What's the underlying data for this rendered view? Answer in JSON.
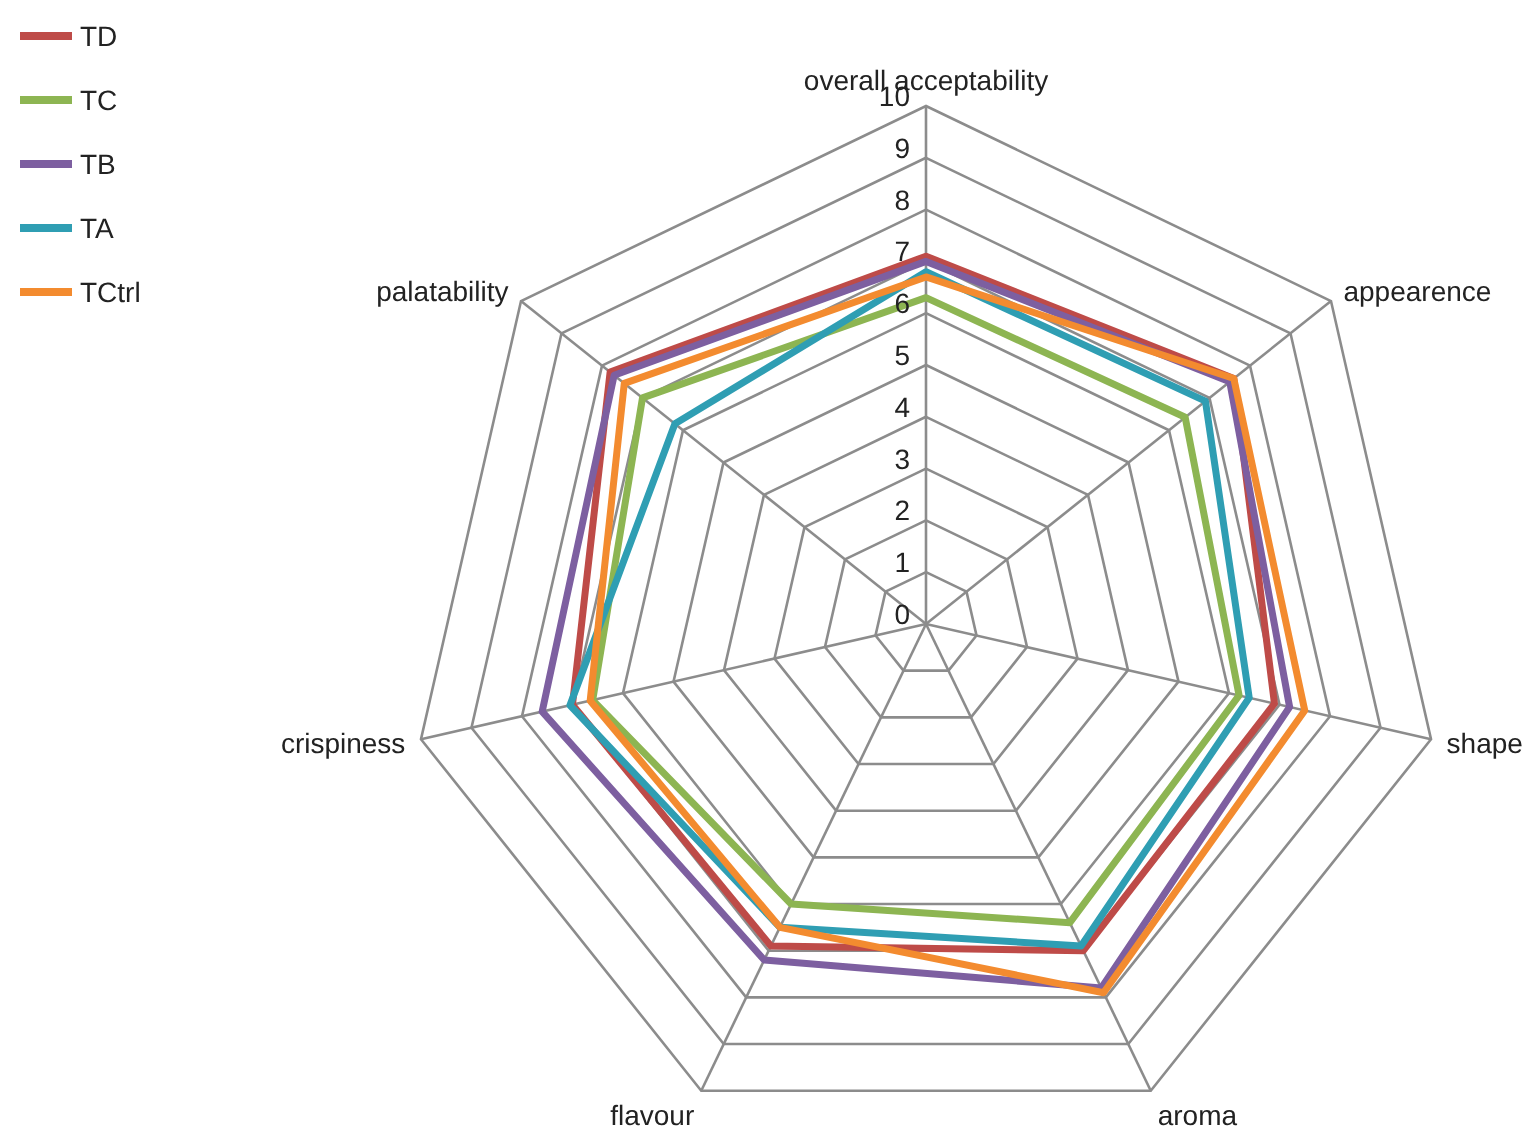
{
  "chart_data": {
    "type": "radar",
    "categories": [
      "overall acceptability",
      "appearence",
      "shape",
      "aroma",
      "flavour",
      "crispiness",
      "palatability"
    ],
    "series": [
      {
        "name": "TD",
        "color": "#be4b48",
        "values": [
          7.1,
          7.6,
          6.9,
          7.0,
          6.9,
          7.0,
          7.8
        ]
      },
      {
        "name": "TC",
        "color": "#8db552",
        "values": [
          6.3,
          6.4,
          6.2,
          6.4,
          6.0,
          6.6,
          7.0
        ]
      },
      {
        "name": "TB",
        "color": "#7d5fa0",
        "values": [
          7.0,
          7.5,
          7.2,
          7.8,
          7.2,
          7.6,
          7.7
        ]
      },
      {
        "name": "TA",
        "color": "#2f9eb3",
        "values": [
          6.8,
          6.9,
          6.4,
          6.9,
          6.5,
          7.05,
          6.2
        ]
      },
      {
        "name": "TCtrl",
        "color": "#f38b2f",
        "values": [
          6.7,
          7.6,
          7.5,
          7.9,
          6.5,
          6.65,
          7.45
        ]
      }
    ],
    "ylim": [
      0,
      10
    ],
    "yticks": [
      0,
      1,
      2,
      3,
      4,
      5,
      6,
      7,
      8,
      9,
      10
    ],
    "grid": true,
    "legend": "top left"
  }
}
